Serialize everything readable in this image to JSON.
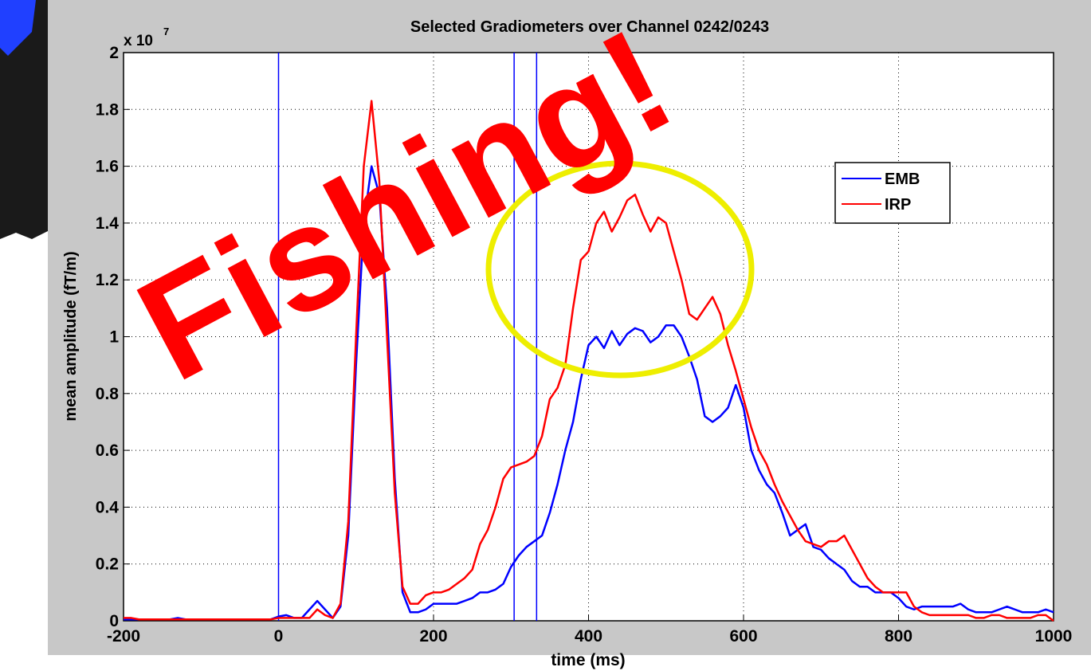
{
  "chart_data": {
    "type": "line",
    "title": "Selected Gradiometers over Channel 0242/0243",
    "xlabel": "time (ms)",
    "ylabel": "mean amplitude (fT/m)",
    "y_multiplier": {
      "base": "x 10",
      "exponent": "7"
    },
    "overlay_text": "Fishing!",
    "x": [
      -200,
      -190,
      -180,
      -170,
      -160,
      -150,
      -140,
      -130,
      -120,
      -110,
      -100,
      -90,
      -80,
      -70,
      -60,
      -50,
      -40,
      -30,
      -20,
      -10,
      0,
      10,
      20,
      30,
      40,
      50,
      60,
      70,
      80,
      90,
      100,
      110,
      120,
      130,
      140,
      150,
      160,
      170,
      180,
      190,
      200,
      210,
      220,
      230,
      240,
      250,
      260,
      270,
      280,
      290,
      300,
      310,
      320,
      330,
      340,
      350,
      360,
      370,
      380,
      390,
      400,
      410,
      420,
      430,
      440,
      450,
      460,
      470,
      480,
      490,
      500,
      510,
      520,
      530,
      540,
      550,
      560,
      570,
      580,
      590,
      600,
      610,
      620,
      630,
      640,
      650,
      660,
      670,
      680,
      690,
      700,
      710,
      720,
      730,
      740,
      750,
      760,
      770,
      780,
      790,
      800,
      810,
      820,
      830,
      840,
      850,
      860,
      870,
      880,
      890,
      900,
      910,
      920,
      930,
      940,
      950,
      960,
      970,
      980,
      990,
      1000
    ],
    "series": [
      {
        "name": "EMB",
        "color": "#0000ff",
        "values": [
          0.005,
          0.005,
          0.005,
          0.005,
          0.005,
          0.005,
          0.005,
          0.01,
          0.005,
          0.005,
          0.005,
          0.005,
          0.005,
          0.005,
          0.005,
          0.005,
          0.005,
          0.005,
          0.005,
          0.005,
          0.015,
          0.02,
          0.01,
          0.01,
          0.04,
          0.07,
          0.04,
          0.01,
          0.05,
          0.3,
          0.9,
          1.4,
          1.6,
          1.5,
          1.1,
          0.5,
          0.1,
          0.03,
          0.03,
          0.04,
          0.06,
          0.06,
          0.06,
          0.06,
          0.07,
          0.08,
          0.1,
          0.1,
          0.11,
          0.13,
          0.19,
          0.23,
          0.26,
          0.28,
          0.3,
          0.38,
          0.48,
          0.6,
          0.7,
          0.85,
          0.97,
          1.0,
          0.96,
          1.02,
          0.97,
          1.01,
          1.03,
          1.02,
          0.98,
          1.0,
          1.04,
          1.04,
          1.0,
          0.93,
          0.85,
          0.72,
          0.7,
          0.72,
          0.75,
          0.83,
          0.75,
          0.6,
          0.53,
          0.48,
          0.45,
          0.38,
          0.3,
          0.32,
          0.34,
          0.26,
          0.25,
          0.22,
          0.2,
          0.18,
          0.14,
          0.12,
          0.12,
          0.1,
          0.1,
          0.1,
          0.08,
          0.05,
          0.04,
          0.05,
          0.05,
          0.05,
          0.05,
          0.05,
          0.06,
          0.04,
          0.03,
          0.03,
          0.03,
          0.04,
          0.05,
          0.04,
          0.03,
          0.03,
          0.03,
          0.04,
          0.03
        ]
      },
      {
        "name": "IRP",
        "color": "#ff0000",
        "values": [
          0.01,
          0.01,
          0.005,
          0.005,
          0.005,
          0.005,
          0.005,
          0.005,
          0.005,
          0.005,
          0.005,
          0.005,
          0.005,
          0.005,
          0.005,
          0.005,
          0.005,
          0.005,
          0.005,
          0.005,
          0.01,
          0.01,
          0.01,
          0.01,
          0.01,
          0.04,
          0.02,
          0.01,
          0.06,
          0.35,
          1.0,
          1.6,
          1.83,
          1.55,
          1.0,
          0.45,
          0.12,
          0.06,
          0.06,
          0.09,
          0.1,
          0.1,
          0.11,
          0.13,
          0.15,
          0.18,
          0.27,
          0.32,
          0.4,
          0.5,
          0.54,
          0.55,
          0.56,
          0.58,
          0.65,
          0.78,
          0.82,
          0.9,
          1.1,
          1.27,
          1.3,
          1.4,
          1.44,
          1.37,
          1.42,
          1.48,
          1.5,
          1.43,
          1.37,
          1.42,
          1.4,
          1.3,
          1.2,
          1.08,
          1.06,
          1.1,
          1.14,
          1.08,
          0.97,
          0.88,
          0.78,
          0.68,
          0.6,
          0.55,
          0.48,
          0.42,
          0.37,
          0.32,
          0.28,
          0.27,
          0.26,
          0.28,
          0.28,
          0.3,
          0.25,
          0.2,
          0.15,
          0.12,
          0.1,
          0.1,
          0.1,
          0.1,
          0.05,
          0.03,
          0.02,
          0.02,
          0.02,
          0.02,
          0.02,
          0.02,
          0.01,
          0.01,
          0.02,
          0.02,
          0.01,
          0.01,
          0.01,
          0.01,
          0.02,
          0.02,
          0.0
        ]
      }
    ],
    "vlines": [
      0,
      304,
      333
    ],
    "vline_color": "#0000ff",
    "xlim": [
      -200,
      1000
    ],
    "xticks": [
      -200,
      0,
      200,
      400,
      600,
      800,
      1000
    ],
    "ylim": [
      0,
      2
    ],
    "yticks": [
      0,
      0.2,
      0.4,
      0.6,
      0.8,
      1,
      1.2,
      1.4,
      1.6,
      1.8,
      2
    ],
    "grid": true,
    "legend": "upper right"
  }
}
